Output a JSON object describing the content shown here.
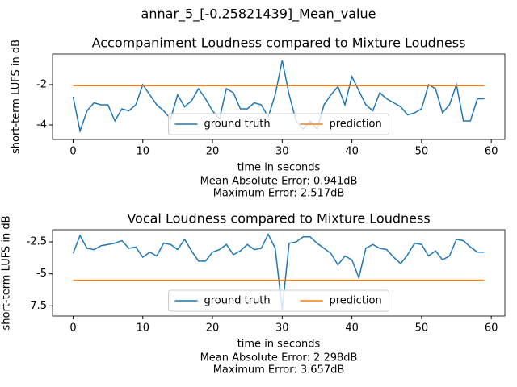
{
  "title": "annar_5_[-0.25821439]_Mean_value",
  "chart_data": [
    {
      "type": "line",
      "title": "Accompaniment Loudness compared to Mixture Loudness",
      "x_label": "time in seconds",
      "y_label": "short-term LUFS in dB",
      "annotations": [
        "Mean Absolute Error: 0.941dB",
        "Maximum Error: 2.517dB"
      ],
      "x": [
        0,
        1,
        2,
        3,
        4,
        5,
        6,
        7,
        8,
        9,
        10,
        11,
        12,
        13,
        14,
        15,
        16,
        17,
        18,
        19,
        20,
        21,
        22,
        23,
        24,
        25,
        26,
        27,
        28,
        29,
        30,
        31,
        32,
        33,
        34,
        35,
        36,
        37,
        38,
        39,
        40,
        41,
        42,
        43,
        44,
        45,
        46,
        47,
        48,
        49,
        50,
        51,
        52,
        53,
        54,
        55,
        56,
        57,
        58,
        59
      ],
      "series": [
        {
          "name": "ground truth",
          "color": "#1f77b4",
          "values": [
            -2.6,
            -4.3,
            -3.3,
            -2.9,
            -3.0,
            -3.0,
            -3.8,
            -3.2,
            -3.3,
            -3.0,
            -2.0,
            -2.5,
            -3.0,
            -3.3,
            -3.7,
            -2.5,
            -3.1,
            -2.8,
            -2.2,
            -2.7,
            -3.3,
            -3.7,
            -2.2,
            -2.4,
            -3.2,
            -3.2,
            -2.9,
            -3.0,
            -3.6,
            -2.5,
            -0.8,
            -2.5,
            -3.8,
            -4.2,
            -3.8,
            -4.2,
            -3.0,
            -2.5,
            -2.1,
            -3.0,
            -1.6,
            -2.3,
            -3.0,
            -3.3,
            -2.4,
            -2.7,
            -2.9,
            -3.1,
            -3.5,
            -3.4,
            -3.2,
            -2.0,
            -2.2,
            -3.4,
            -3.0,
            -2.0,
            -3.8,
            -3.8,
            -2.7,
            -2.7
          ]
        },
        {
          "name": "prediction",
          "color": "#ff7f0e",
          "values": [
            -2.05,
            -2.05,
            -2.05,
            -2.05,
            -2.05,
            -2.05,
            -2.05,
            -2.05,
            -2.05,
            -2.05,
            -2.05,
            -2.05,
            -2.05,
            -2.05,
            -2.05,
            -2.05,
            -2.05,
            -2.05,
            -2.05,
            -2.05,
            -2.05,
            -2.05,
            -2.05,
            -2.05,
            -2.05,
            -2.05,
            -2.05,
            -2.05,
            -2.05,
            -2.05,
            -2.05,
            -2.05,
            -2.05,
            -2.05,
            -2.05,
            -2.05,
            -2.05,
            -2.05,
            -2.05,
            -2.05,
            -2.05,
            -2.05,
            -2.05,
            -2.05,
            -2.05,
            -2.05,
            -2.05,
            -2.05,
            -2.05,
            -2.05,
            -2.05,
            -2.05,
            -2.05,
            -2.05,
            -2.05,
            -2.05,
            -2.05,
            -2.05,
            -2.05,
            -2.05
          ]
        }
      ],
      "xlim": [
        -2.95,
        61.95
      ],
      "xticks": [
        0,
        10,
        20,
        30,
        40,
        50,
        60
      ],
      "ylim": [
        -4.72,
        -0.48
      ],
      "yticks": [
        -4,
        -2
      ],
      "legend": "lower center",
      "grid": false
    },
    {
      "type": "line",
      "title": "Vocal Loudness compared to Mixture Loudness",
      "x_label": "time in seconds",
      "y_label": "short-term LUFS in dB",
      "annotations": [
        "Mean Absolute Error: 2.298dB",
        "Maximum Error: 3.657dB"
      ],
      "x": [
        0,
        1,
        2,
        3,
        4,
        5,
        6,
        7,
        8,
        9,
        10,
        11,
        12,
        13,
        14,
        15,
        16,
        17,
        18,
        19,
        20,
        21,
        22,
        23,
        24,
        25,
        26,
        27,
        28,
        29,
        30,
        31,
        32,
        33,
        34,
        35,
        36,
        37,
        38,
        39,
        40,
        41,
        42,
        43,
        44,
        45,
        46,
        47,
        48,
        49,
        50,
        51,
        52,
        53,
        54,
        55,
        56,
        57,
        58,
        59
      ],
      "series": [
        {
          "name": "ground truth",
          "color": "#1f77b4",
          "values": [
            -3.4,
            -2.0,
            -3.0,
            -3.1,
            -2.8,
            -2.7,
            -2.6,
            -2.4,
            -3.0,
            -2.9,
            -3.7,
            -3.3,
            -3.6,
            -2.6,
            -2.7,
            -3.1,
            -2.3,
            -3.2,
            -4.0,
            -4.0,
            -3.3,
            -3.1,
            -2.7,
            -3.5,
            -3.2,
            -2.7,
            -3.1,
            -3.0,
            -1.9,
            -3.0,
            -7.8,
            -2.6,
            -2.5,
            -2.1,
            -2.1,
            -2.6,
            -3.0,
            -3.4,
            -4.3,
            -3.6,
            -3.9,
            -5.3,
            -3.0,
            -2.7,
            -3.0,
            -3.1,
            -3.7,
            -4.2,
            -3.5,
            -2.6,
            -2.7,
            -3.6,
            -3.2,
            -3.9,
            -3.6,
            -2.3,
            -2.4,
            -2.9,
            -3.3,
            -3.3
          ]
        },
        {
          "name": "prediction",
          "color": "#ff7f0e",
          "values": [
            -5.5,
            -5.5,
            -5.5,
            -5.5,
            -5.5,
            -5.5,
            -5.5,
            -5.5,
            -5.5,
            -5.5,
            -5.5,
            -5.5,
            -5.5,
            -5.5,
            -5.5,
            -5.5,
            -5.5,
            -5.5,
            -5.5,
            -5.5,
            -5.5,
            -5.5,
            -5.5,
            -5.5,
            -5.5,
            -5.5,
            -5.5,
            -5.5,
            -5.5,
            -5.5,
            -5.5,
            -5.5,
            -5.5,
            -5.5,
            -5.5,
            -5.5,
            -5.5,
            -5.5,
            -5.5,
            -5.5,
            -5.5,
            -5.5,
            -5.5,
            -5.5,
            -5.5,
            -5.5,
            -5.5,
            -5.5,
            -5.5,
            -5.5,
            -5.5,
            -5.5,
            -5.5,
            -5.5,
            -5.5,
            -5.5,
            -5.5,
            -5.5,
            -5.5,
            -5.5
          ]
        }
      ],
      "xlim": [
        -2.95,
        61.95
      ],
      "xticks": [
        0,
        10,
        20,
        30,
        40,
        50,
        60
      ],
      "ylim": [
        -8.3,
        -1.55
      ],
      "yticks": [
        -7.5,
        -5.0,
        -2.5
      ],
      "legend": "lower center",
      "grid": false
    }
  ]
}
